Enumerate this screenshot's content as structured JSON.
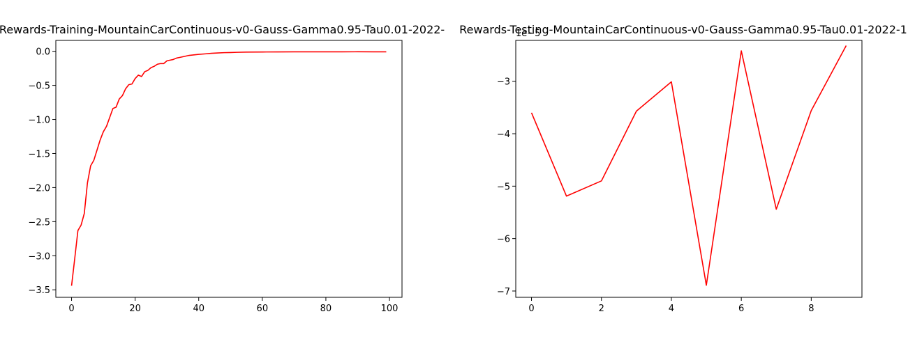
{
  "colors": {
    "line": "#ff0000",
    "axes": "#000000",
    "background": "#ffffff"
  },
  "chart_data": [
    {
      "type": "line",
      "title": "Rewards-Training-MountainCarContinuous-v0-Gauss-Gamma0.95-Tau0.01-2022-",
      "xlabel": "",
      "ylabel": "",
      "xlim": [
        -4.95,
        103.95
      ],
      "ylim": [
        -3.61,
        0.16
      ],
      "xticks": [
        0,
        20,
        40,
        60,
        80,
        100
      ],
      "xtick_labels": [
        "0",
        "20",
        "40",
        "60",
        "80",
        "100"
      ],
      "yticks": [
        0.0,
        -0.5,
        -1.0,
        -1.5,
        -2.0,
        -2.5,
        -3.0,
        -3.5
      ],
      "ytick_labels": [
        "0.0",
        "−0.5",
        "−1.0",
        "−1.5",
        "−2.0",
        "−2.5",
        "−3.0",
        "−3.5"
      ],
      "grid": false,
      "series": [
        {
          "color": "#ff0000",
          "x": [
            0,
            1,
            2,
            3,
            4,
            5,
            6,
            7,
            8,
            9,
            10,
            11,
            12,
            13,
            14,
            15,
            16,
            17,
            18,
            19,
            20,
            21,
            22,
            23,
            24,
            25,
            26,
            27,
            28,
            29,
            30,
            31,
            32,
            33,
            34,
            35,
            36,
            37,
            38,
            39,
            40,
            42,
            44,
            46,
            48,
            50,
            52,
            55,
            60,
            65,
            70,
            75,
            80,
            85,
            90,
            95,
            99
          ],
          "y": [
            -3.44,
            -3.04,
            -2.63,
            -2.55,
            -2.38,
            -1.93,
            -1.68,
            -1.6,
            -1.45,
            -1.3,
            -1.18,
            -1.1,
            -0.97,
            -0.84,
            -0.82,
            -0.7,
            -0.65,
            -0.55,
            -0.49,
            -0.48,
            -0.4,
            -0.35,
            -0.37,
            -0.3,
            -0.28,
            -0.24,
            -0.22,
            -0.19,
            -0.18,
            -0.18,
            -0.14,
            -0.13,
            -0.12,
            -0.1,
            -0.09,
            -0.08,
            -0.07,
            -0.06,
            -0.055,
            -0.05,
            -0.045,
            -0.038,
            -0.03,
            -0.025,
            -0.02,
            -0.018,
            -0.015,
            -0.012,
            -0.01,
            -0.009,
            -0.008,
            -0.008,
            -0.008,
            -0.008,
            -0.007,
            -0.008,
            -0.008
          ]
        }
      ]
    },
    {
      "type": "line",
      "title": "Rewards-Testing-MountainCarContinuous-v0-Gauss-Gamma0.95-Tau0.01-2022-1",
      "xlabel": "",
      "ylabel": "",
      "y_multiplier": "1e−5",
      "xlim": [
        -0.45,
        9.45
      ],
      "ylim": [
        -7.12,
        -2.22
      ],
      "xticks": [
        0,
        2,
        4,
        6,
        8
      ],
      "xtick_labels": [
        "0",
        "2",
        "4",
        "6",
        "8"
      ],
      "yticks": [
        -3,
        -4,
        -5,
        -6,
        -7
      ],
      "ytick_labels": [
        "−3",
        "−4",
        "−5",
        "−6",
        "−7"
      ],
      "grid": false,
      "series": [
        {
          "color": "#ff0000",
          "x": [
            0,
            1,
            2,
            3,
            4,
            5,
            6,
            7,
            8,
            9
          ],
          "y": [
            -3.6,
            -5.19,
            -4.9,
            -3.57,
            -3.01,
            -6.89,
            -2.42,
            -5.44,
            -3.56,
            -2.32
          ]
        }
      ]
    }
  ]
}
